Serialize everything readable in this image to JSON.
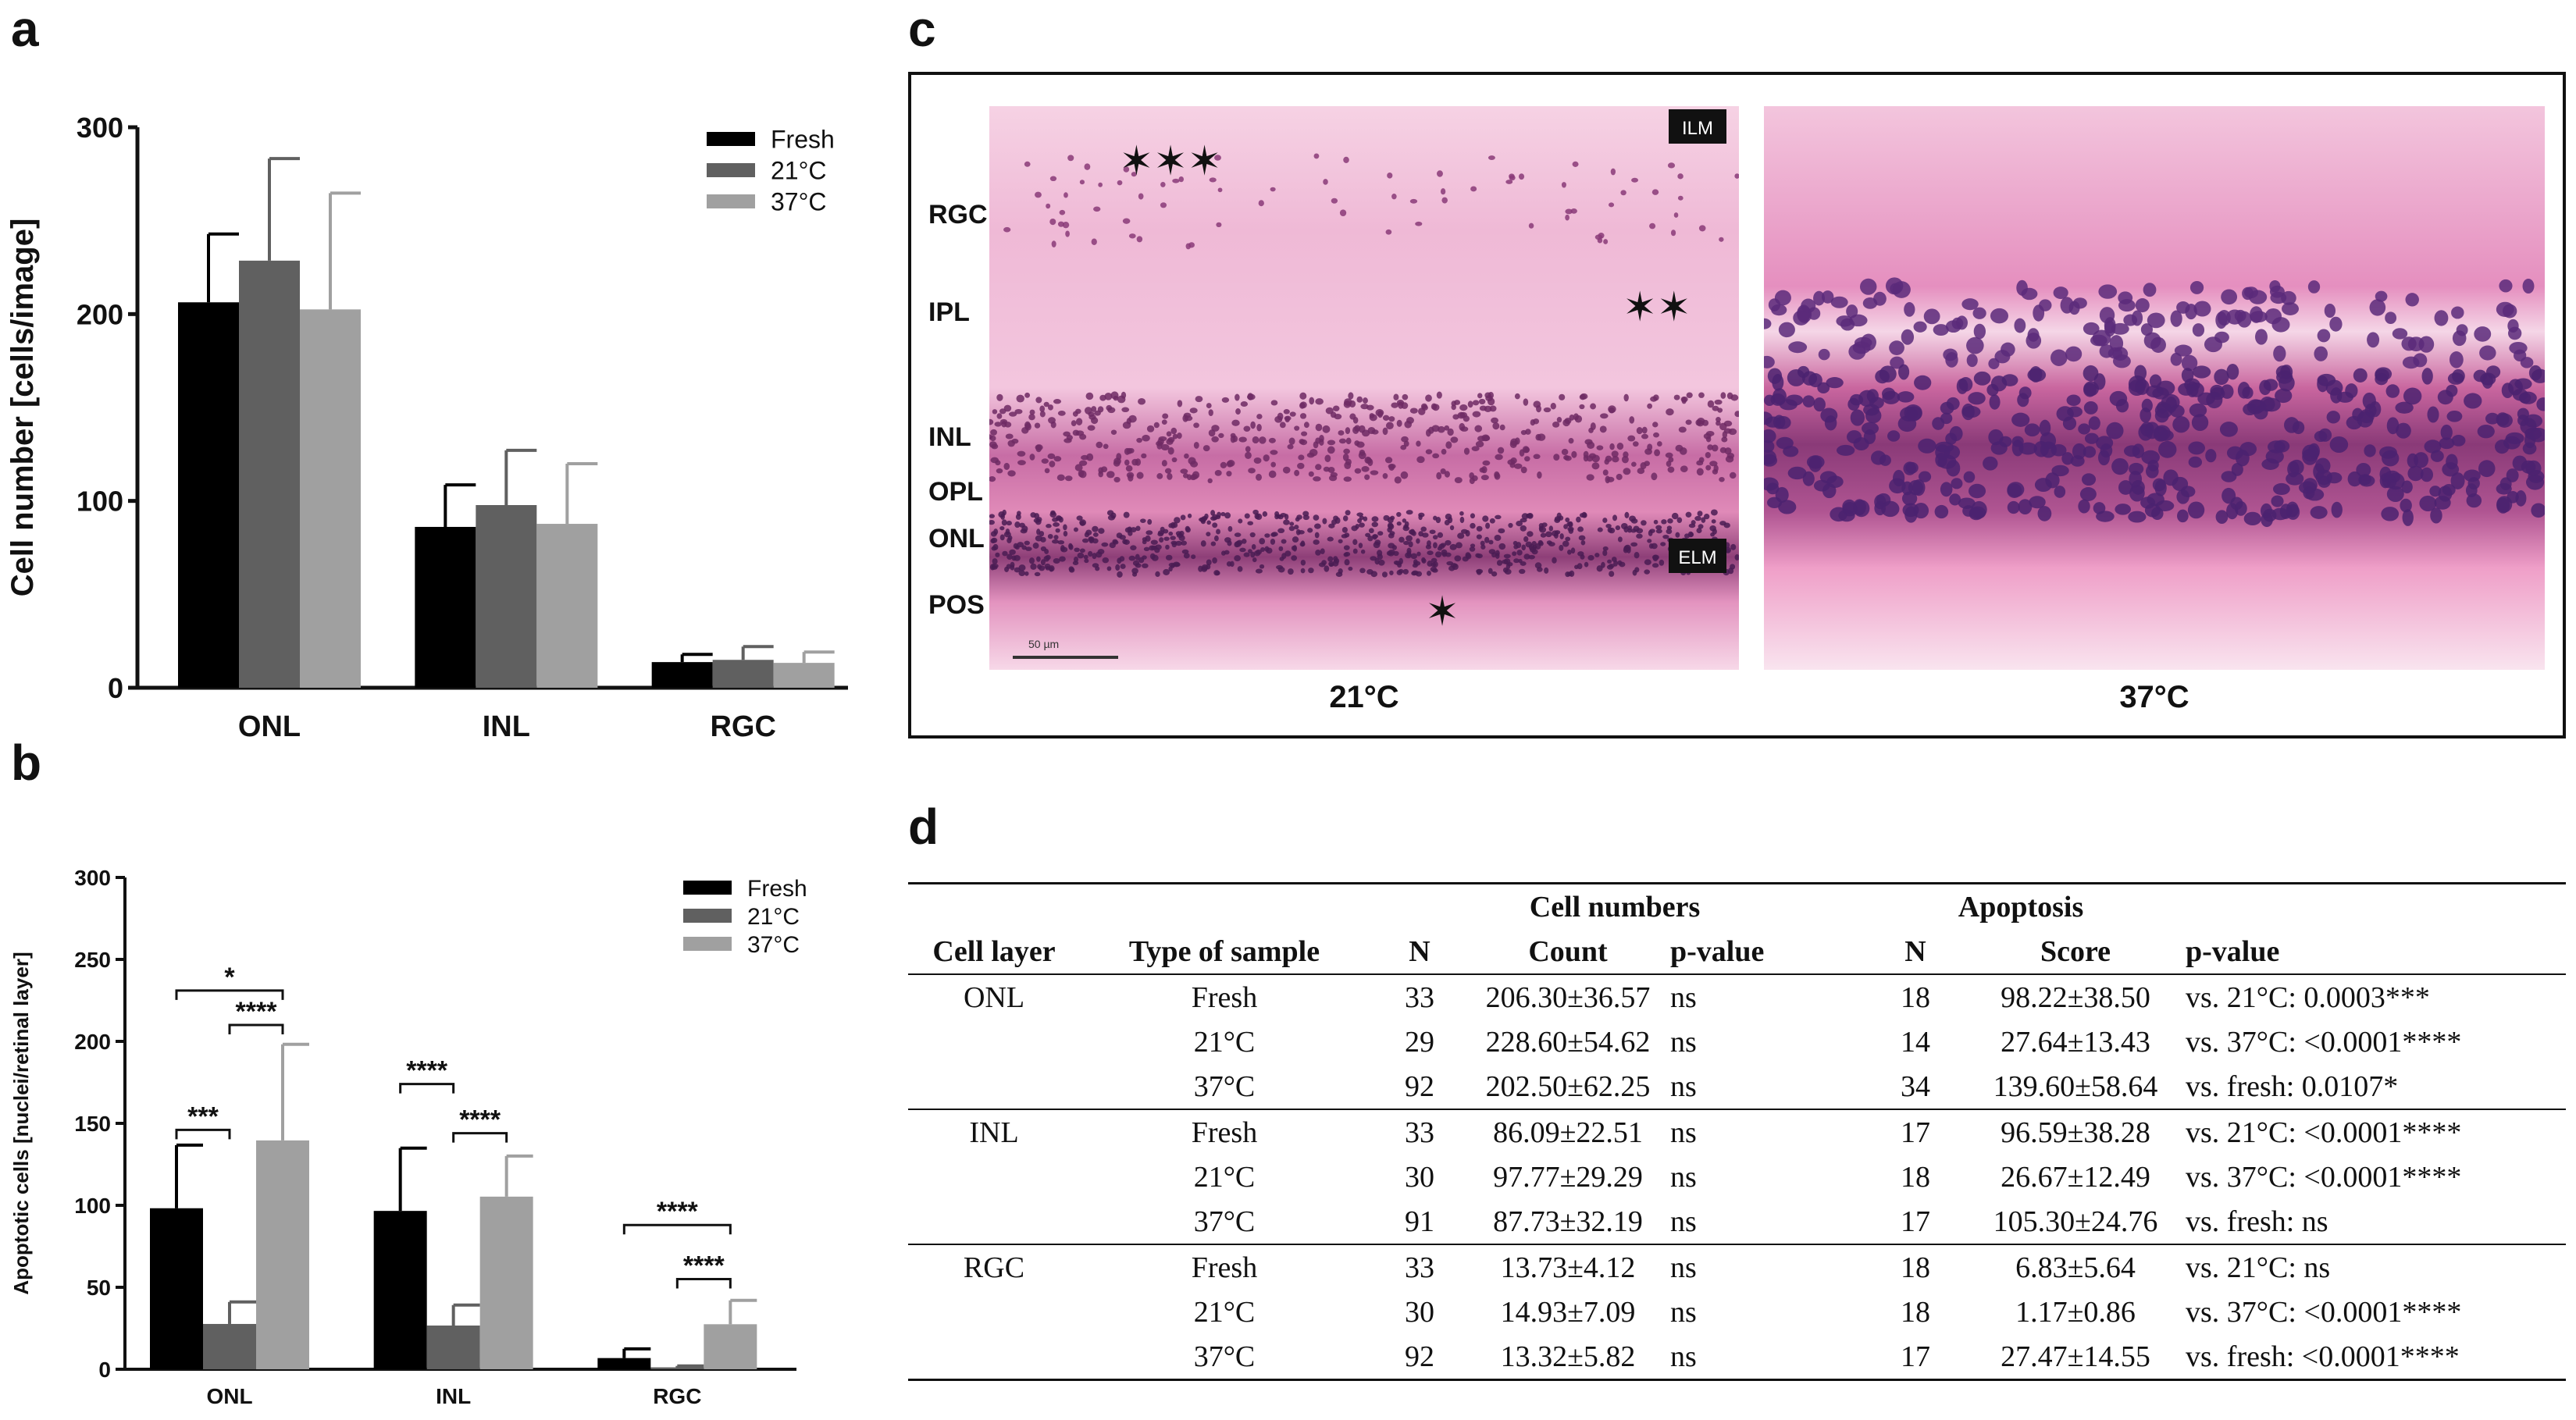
{
  "figure": {
    "panel_labels": {
      "a": "a",
      "b": "b",
      "c": "c",
      "d": "d"
    }
  },
  "chart_data": [
    {
      "panel": "a",
      "type": "bar",
      "categories": [
        "ONL",
        "INL",
        "RGC"
      ],
      "ylabel": "Cell number [cells/image]",
      "ylim": [
        0,
        300
      ],
      "yticks": [
        0,
        100,
        200,
        300
      ],
      "legend_position": "top-right",
      "series": [
        {
          "name": "Fresh",
          "color": "#000000",
          "values": [
            206.3,
            86.09,
            13.73
          ],
          "errors": [
            36.57,
            22.51,
            4.12
          ]
        },
        {
          "name": "21°C",
          "color": "#606060",
          "values": [
            228.6,
            97.77,
            14.93
          ],
          "errors": [
            54.62,
            29.29,
            7.09
          ]
        },
        {
          "name": "37°C",
          "color": "#a0a0a0",
          "values": [
            202.5,
            87.73,
            13.32
          ],
          "errors": [
            62.25,
            32.19,
            5.82
          ]
        }
      ]
    },
    {
      "panel": "b",
      "type": "bar",
      "categories": [
        "ONL",
        "INL",
        "RGC"
      ],
      "ylabel": "Apoptotic cells [nuclei/retinal layer]",
      "ylim": [
        0,
        300
      ],
      "yticks": [
        0,
        50,
        100,
        150,
        200,
        250,
        300
      ],
      "legend_position": "top-right",
      "series": [
        {
          "name": "Fresh",
          "color": "#000000",
          "values": [
            98.22,
            96.59,
            6.83
          ],
          "errors": [
            38.5,
            38.28,
            5.64
          ]
        },
        {
          "name": "21°C",
          "color": "#606060",
          "values": [
            27.64,
            26.67,
            1.17
          ],
          "errors": [
            13.43,
            12.49,
            0.86
          ]
        },
        {
          "name": "37°C",
          "color": "#a0a0a0",
          "values": [
            139.6,
            105.3,
            27.47
          ],
          "errors": [
            58.64,
            24.76,
            14.55
          ]
        }
      ],
      "annotations": [
        {
          "category": 0,
          "from": 0,
          "to": 2,
          "label": "*",
          "level": 231
        },
        {
          "category": 0,
          "from": 1,
          "to": 2,
          "label": "****",
          "level": 210
        },
        {
          "category": 0,
          "from": 0,
          "to": 1,
          "label": "***",
          "level": 146
        },
        {
          "category": 1,
          "from": 0,
          "to": 1,
          "label": "****",
          "level": 174
        },
        {
          "category": 1,
          "from": 1,
          "to": 2,
          "label": "****",
          "level": 144
        },
        {
          "category": 2,
          "from": 0,
          "to": 2,
          "label": "****",
          "level": 88
        },
        {
          "category": 2,
          "from": 1,
          "to": 2,
          "label": "****",
          "level": 55
        }
      ]
    }
  ],
  "micrographs": {
    "left": {
      "caption": "21°C",
      "layers": [
        "RGC",
        "IPL",
        "INL",
        "OPL",
        "ONL",
        "POS"
      ],
      "tag_ilm": "ILM",
      "tag_elm": "ELM",
      "scalebar_label": "50 µm",
      "asterisk_groups": [
        "✶✶✶",
        "✶✶",
        "✶"
      ]
    },
    "right": {
      "caption": "37°C"
    }
  },
  "table": {
    "group_headers": {
      "cell_numbers": "Cell numbers",
      "apoptosis": "Apoptosis"
    },
    "columns": [
      "Cell layer",
      "Type of sample",
      "N",
      "Count",
      "p-value",
      "N",
      "Score",
      "p-value"
    ],
    "rows": [
      [
        "ONL",
        "Fresh",
        "33",
        "206.30±36.57",
        "ns",
        "18",
        "98.22±38.50",
        "vs. 21°C: 0.0003***"
      ],
      [
        "",
        "21°C",
        "29",
        "228.60±54.62",
        "ns",
        "14",
        "27.64±13.43",
        "vs. 37°C: <0.0001****"
      ],
      [
        "",
        "37°C",
        "92",
        "202.50±62.25",
        "ns",
        "34",
        "139.60±58.64",
        "vs. fresh: 0.0107*"
      ],
      [
        "INL",
        "Fresh",
        "33",
        "86.09±22.51",
        "ns",
        "17",
        "96.59±38.28",
        "vs. 21°C: <0.0001****"
      ],
      [
        "",
        "21°C",
        "30",
        "97.77±29.29",
        "ns",
        "18",
        "26.67±12.49",
        "vs. 37°C: <0.0001****"
      ],
      [
        "",
        "37°C",
        "91",
        "87.73±32.19",
        "ns",
        "17",
        "105.30±24.76",
        "vs. fresh: ns"
      ],
      [
        "RGC",
        "Fresh",
        "33",
        "13.73±4.12",
        "ns",
        "18",
        "6.83±5.64",
        "vs. 21°C: ns"
      ],
      [
        "",
        "21°C",
        "30",
        "14.93±7.09",
        "ns",
        "18",
        "1.17±0.86",
        "vs. 37°C: <0.0001****"
      ],
      [
        "",
        "37°C",
        "92",
        "13.32±5.82",
        "ns",
        "17",
        "27.47±14.55",
        "vs. fresh: <0.0001****"
      ]
    ]
  }
}
